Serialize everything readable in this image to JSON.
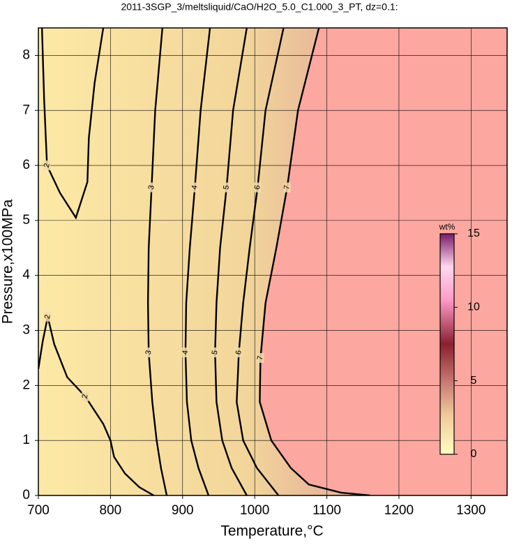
{
  "chart_data": {
    "type": "contour",
    "title": "2011-3SGP_3/meltsliquid/CaO/H2O_5.0_C1.000_3_PT, dz=0.1:",
    "x_label": "Temperature,°C",
    "y_label": "Pressure,x100MPa",
    "xlim": [
      700,
      1350
    ],
    "ylim": [
      0,
      8.5
    ],
    "xticks": [
      700,
      800,
      900,
      1000,
      1100,
      1200,
      1300
    ],
    "yticks": [
      0,
      1,
      2,
      3,
      4,
      5,
      6,
      7,
      8
    ],
    "grid": true,
    "line_color": "#000000",
    "contours": [
      {
        "level": 2,
        "x": [
          705,
          708,
          712,
          730,
          752,
          768,
          770,
          778,
          790
        ],
        "y": [
          8.5,
          7.2,
          6.0,
          5.5,
          5.05,
          5.7,
          6.5,
          7.5,
          8.5
        ]
      },
      {
        "level": 2,
        "x": [
          700,
          706,
          713,
          722,
          740,
          765,
          790,
          800,
          805,
          820,
          840,
          860
        ],
        "y": [
          2.3,
          2.8,
          3.25,
          2.75,
          2.15,
          1.8,
          1.3,
          1.0,
          0.7,
          0.4,
          0.15,
          0
        ]
      },
      {
        "level": 3,
        "x": [
          872,
          862,
          857,
          853,
          852,
          853,
          858,
          864,
          870,
          878
        ],
        "y": [
          8.5,
          7,
          5.6,
          4.5,
          3.5,
          2.6,
          1.7,
          1,
          0.5,
          0
        ]
      },
      {
        "level": 4,
        "x": [
          938,
          925,
          917,
          910,
          905,
          904,
          906,
          912,
          922,
          936
        ],
        "y": [
          8.5,
          7,
          5.6,
          4.5,
          3.5,
          2.6,
          1.7,
          1,
          0.5,
          0
        ]
      },
      {
        "level": 5,
        "x": [
          989,
          970,
          961,
          952,
          947,
          945,
          947,
          955,
          968,
          989
        ],
        "y": [
          8.5,
          7,
          5.6,
          4.5,
          3.5,
          2.6,
          1.7,
          1,
          0.5,
          0
        ]
      },
      {
        "level": 6,
        "x": [
          1040,
          1015,
          1004,
          993,
          984,
          978,
          975,
          984,
          1003,
          1033
        ],
        "y": [
          8.5,
          7,
          5.6,
          4.5,
          3.5,
          2.6,
          1.7,
          1,
          0.5,
          0
        ]
      },
      {
        "level": 7,
        "x": [
          1089,
          1060,
          1045,
          1030,
          1015,
          1008,
          1007,
          1023,
          1050,
          1075,
          1120,
          1160
        ],
        "y": [
          8.5,
          7,
          5.6,
          4.5,
          3.5,
          2.5,
          1.7,
          1,
          0.5,
          0.2,
          0.05,
          0
        ]
      }
    ],
    "colorbar": {
      "label": "wt%",
      "lim": [
        0,
        15
      ],
      "ticks": [
        0,
        5,
        10,
        15
      ]
    }
  }
}
